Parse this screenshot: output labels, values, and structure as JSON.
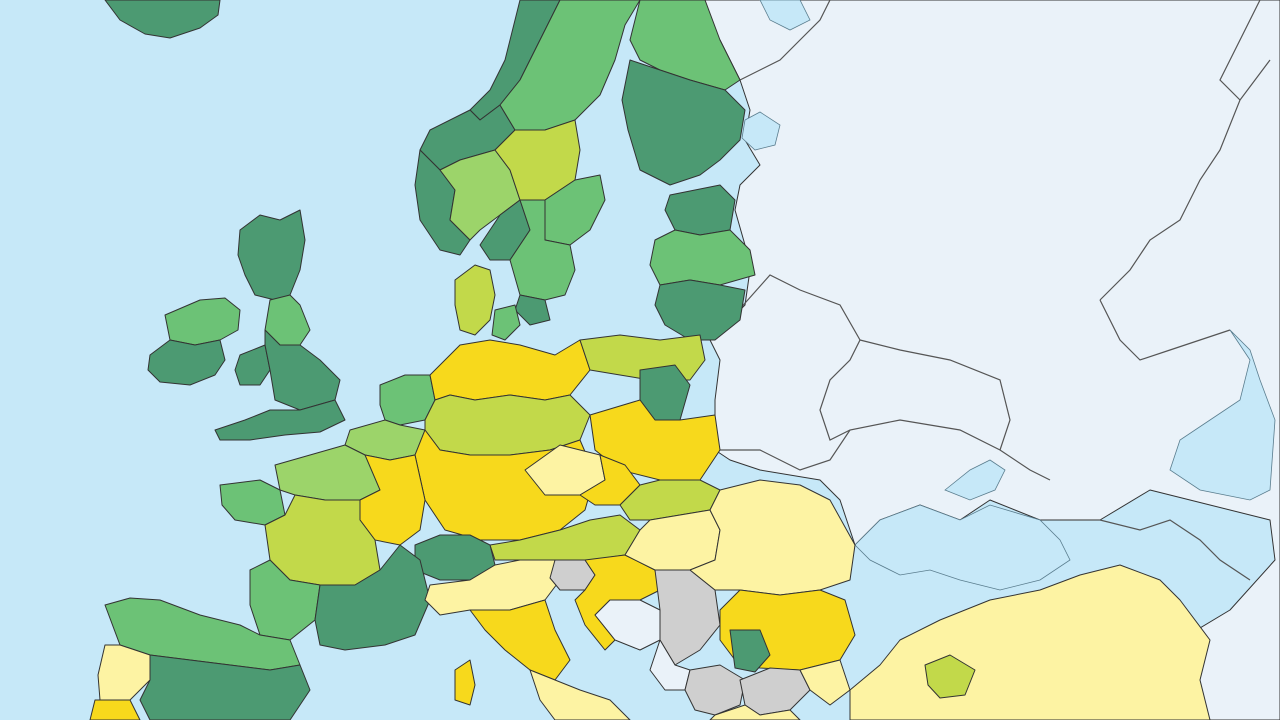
{
  "map": {
    "colors": {
      "sea": "#c6e8f8",
      "non_data_land": "#eaf2f9",
      "no_data": "#cfcfcf",
      "dark_green": "#4c9a72",
      "mid_green": "#6cc276",
      "light_green": "#9cd46a",
      "lime": "#c2d94a",
      "yellow": "#f7d91c",
      "pale_yellow": "#fdf3a3",
      "border": "#333333"
    },
    "legend_categories": [],
    "region_groups": [
      {
        "name": "iceland",
        "color_key": "dark_green"
      },
      {
        "name": "norway",
        "color_key": "dark_green"
      },
      {
        "name": "sweden",
        "color_key": "mid_green"
      },
      {
        "name": "finland",
        "color_key": "dark_green"
      },
      {
        "name": "baltics",
        "color_key": "mid_green"
      },
      {
        "name": "ireland",
        "color_key": "mid_green"
      },
      {
        "name": "great-britain",
        "color_key": "dark_green"
      },
      {
        "name": "benelux",
        "color_key": "mid_green"
      },
      {
        "name": "denmark",
        "color_key": "lime"
      },
      {
        "name": "germany",
        "color_key": "yellow"
      },
      {
        "name": "poland",
        "color_key": "lime"
      },
      {
        "name": "czechia",
        "color_key": "pale_yellow"
      },
      {
        "name": "france",
        "color_key": "light_green"
      },
      {
        "name": "switzerland",
        "color_key": "dark_green"
      },
      {
        "name": "austria",
        "color_key": "lime"
      },
      {
        "name": "iberia",
        "color_key": "mid_green"
      },
      {
        "name": "italy",
        "color_key": "pale_yellow"
      },
      {
        "name": "croatia",
        "color_key": "yellow"
      },
      {
        "name": "western-balkans",
        "color_key": "no_data"
      },
      {
        "name": "hungary-romania",
        "color_key": "pale_yellow"
      },
      {
        "name": "bulgaria",
        "color_key": "yellow"
      },
      {
        "name": "greece",
        "color_key": "pale_yellow"
      },
      {
        "name": "turkey",
        "color_key": "pale_yellow"
      },
      {
        "name": "eastern-europe",
        "color_key": "non_data_land"
      }
    ]
  }
}
